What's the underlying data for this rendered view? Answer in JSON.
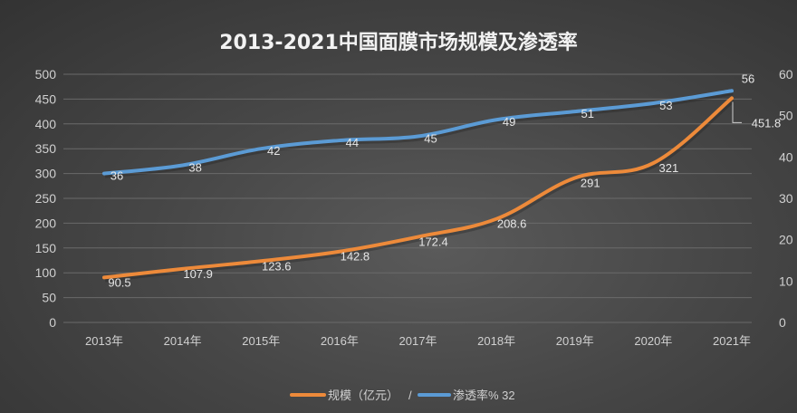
{
  "chart_data": {
    "type": "line",
    "title": "2013-2021中国面膜市场规模及渗透率",
    "categories": [
      "2013年",
      "2014年",
      "2015年",
      "2016年",
      "2017年",
      "2018年",
      "2019年",
      "2020年",
      "2021年"
    ],
    "series": [
      {
        "name": "规模（亿元）",
        "axis": "left",
        "color": "#ed8a3a",
        "values": [
          90.5,
          107.9,
          123.6,
          142.8,
          172.4,
          208.6,
          291,
          321,
          451.8
        ],
        "labels": [
          "90.5",
          "107.9",
          "123.6",
          "142.8",
          "172.4",
          "208.6",
          "291",
          "321",
          "451.8"
        ]
      },
      {
        "name": "渗透率% 32",
        "axis": "right",
        "color": "#5b9bd5",
        "values": [
          36,
          38,
          42,
          44,
          45,
          49,
          51,
          53,
          56
        ],
        "labels": [
          "36",
          "38",
          "42",
          "44",
          "45",
          "49",
          "51",
          "53",
          "56"
        ]
      }
    ],
    "left_axis": {
      "ylim": [
        0,
        500
      ],
      "ticks": [
        "0",
        "50",
        "100",
        "150",
        "200",
        "250",
        "300",
        "350",
        "400",
        "450",
        "500"
      ]
    },
    "right_axis": {
      "ylim": [
        0,
        60
      ],
      "ticks": [
        "0",
        "10",
        "20",
        "30",
        "40",
        "50",
        "60"
      ]
    },
    "grid": true,
    "legend": {
      "position": "bottom",
      "separator": "/",
      "items": [
        "规模（亿元）",
        "渗透率% 32"
      ]
    }
  }
}
